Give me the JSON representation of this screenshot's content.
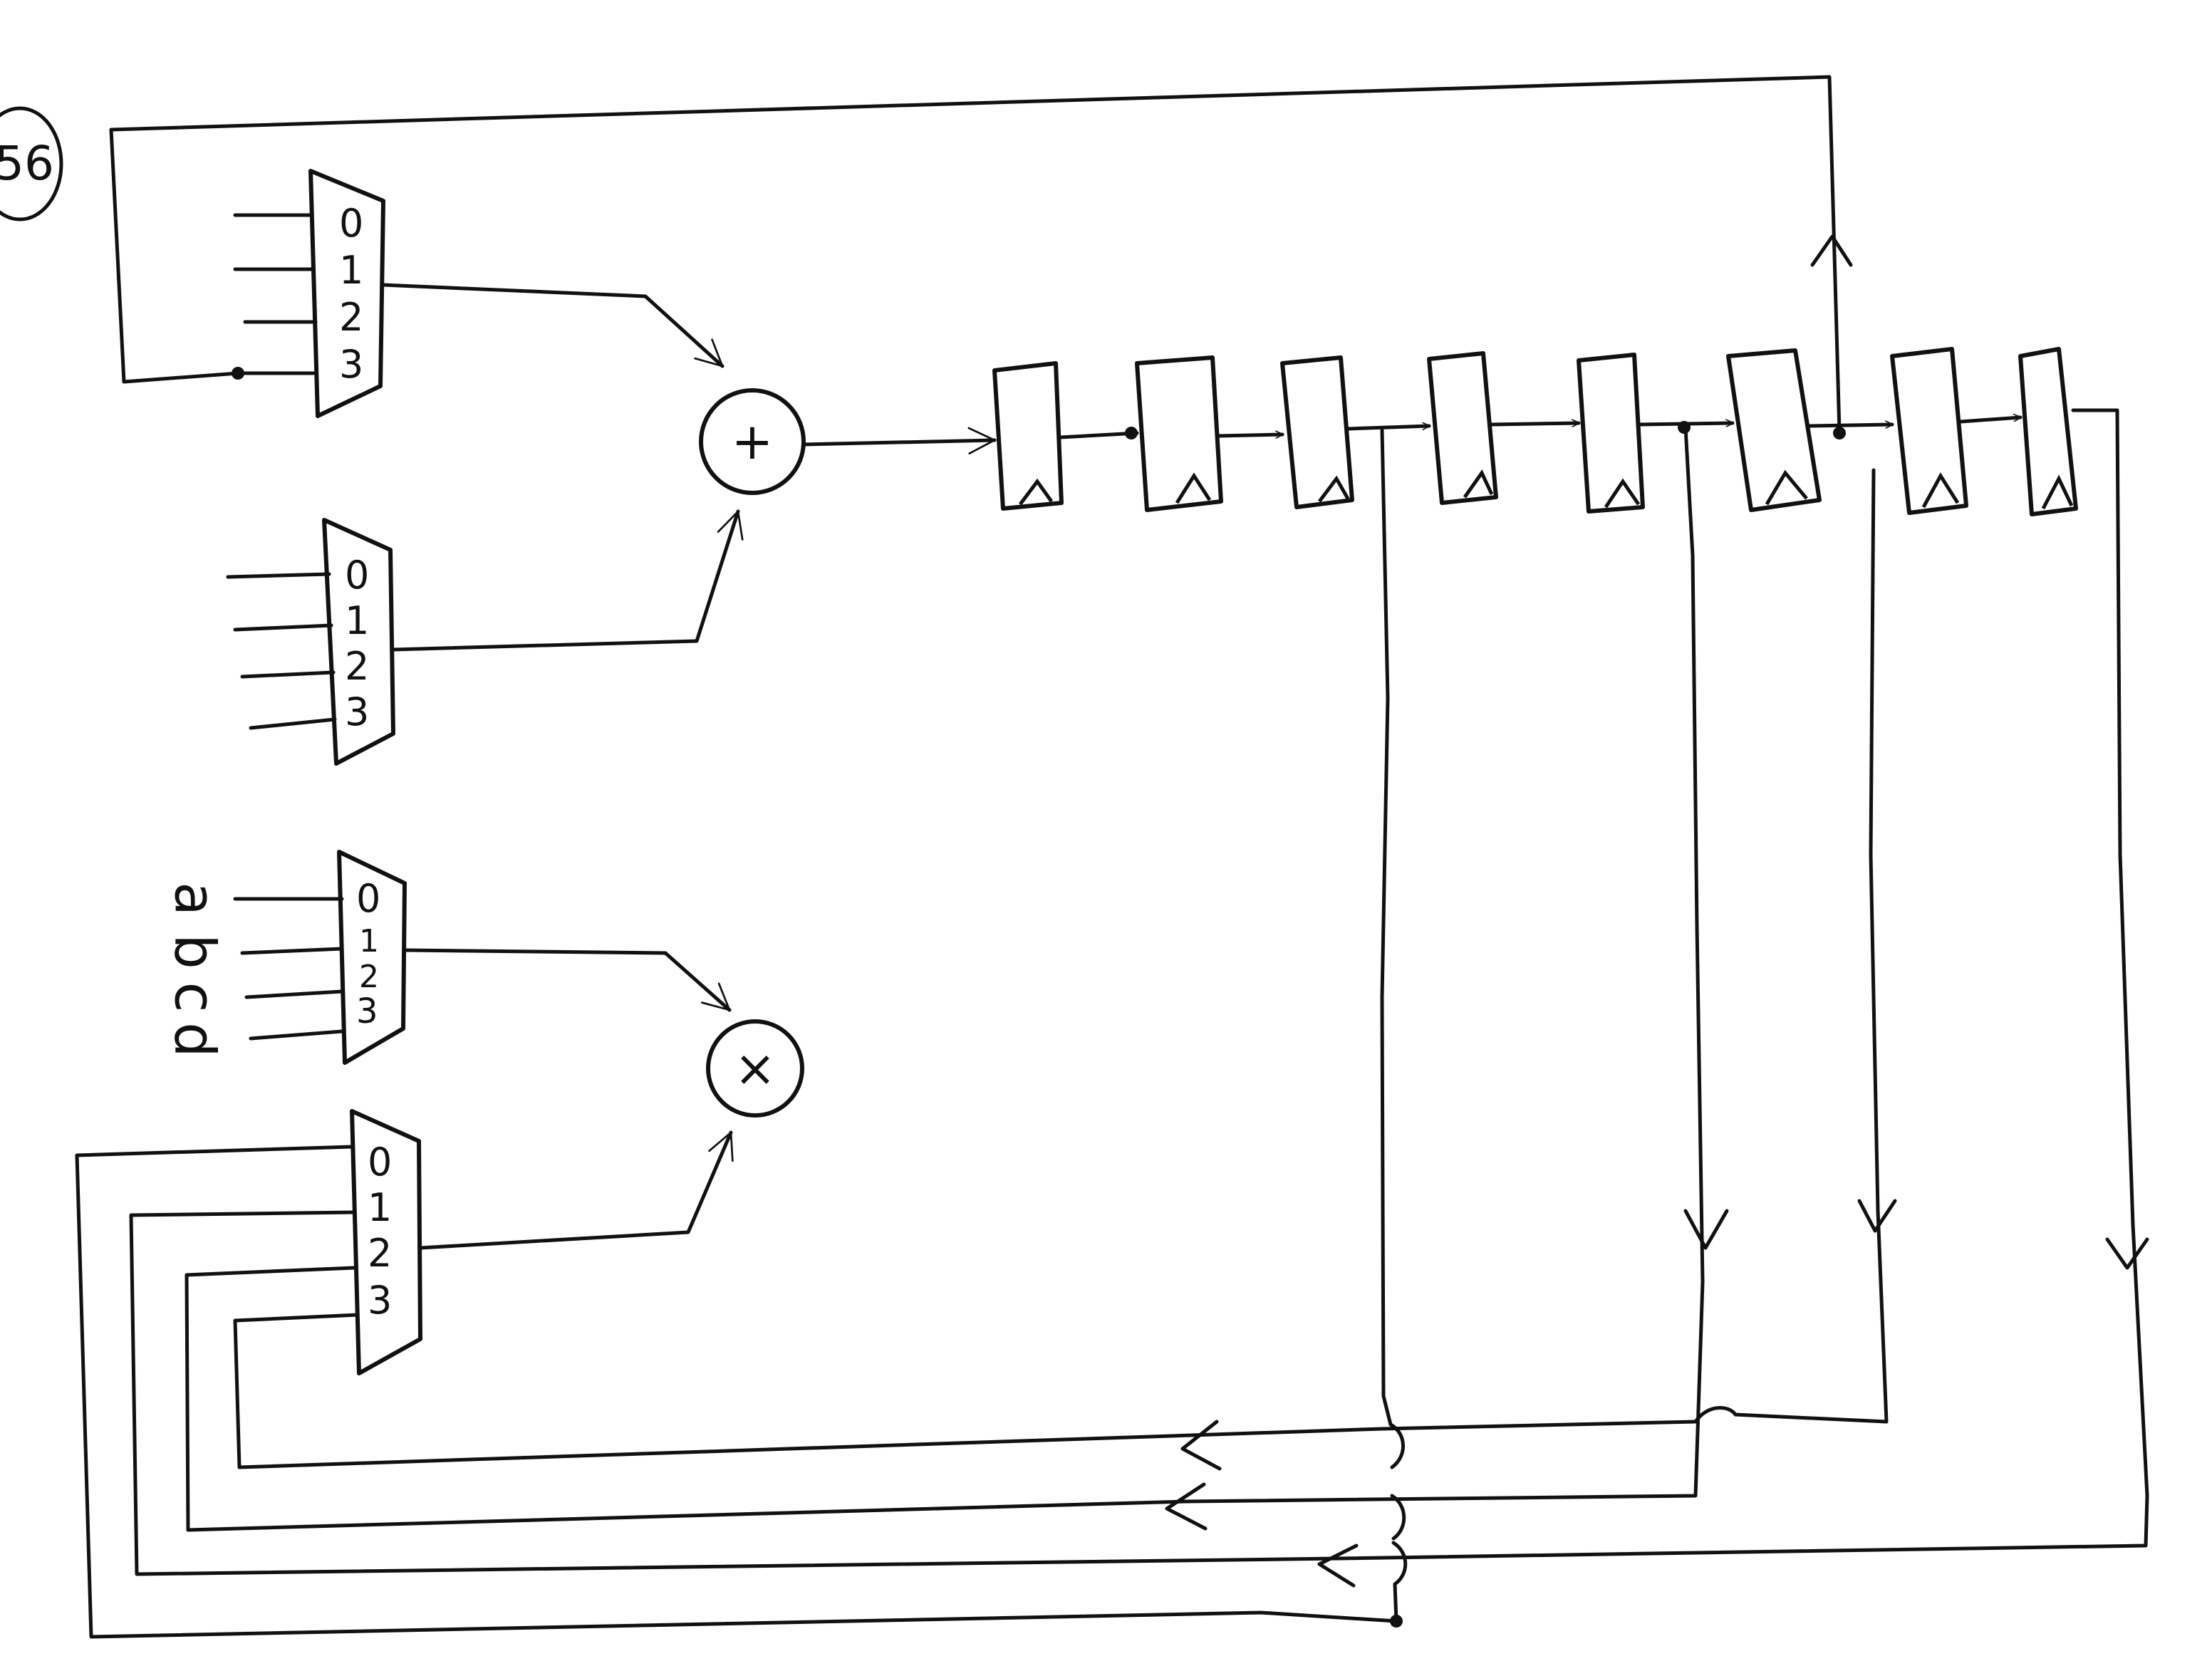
{
  "page_label": "56",
  "mux_top_add": {
    "inputs": [
      "0",
      "1",
      "2",
      "3"
    ]
  },
  "mux_bottom_add": {
    "inputs": [
      "0",
      "1",
      "2",
      "3"
    ]
  },
  "mux_top_mul": {
    "inputs": [
      "0",
      "1",
      "2",
      "3"
    ]
  },
  "mux_bottom_mul": {
    "inputs": [
      "0",
      "1",
      "2",
      "3"
    ]
  },
  "adder": {
    "symbol": "+"
  },
  "multiplier": {
    "symbol": "×"
  },
  "coefficient_labels": [
    "a",
    "b",
    "c",
    "d"
  ],
  "register_count": 8
}
